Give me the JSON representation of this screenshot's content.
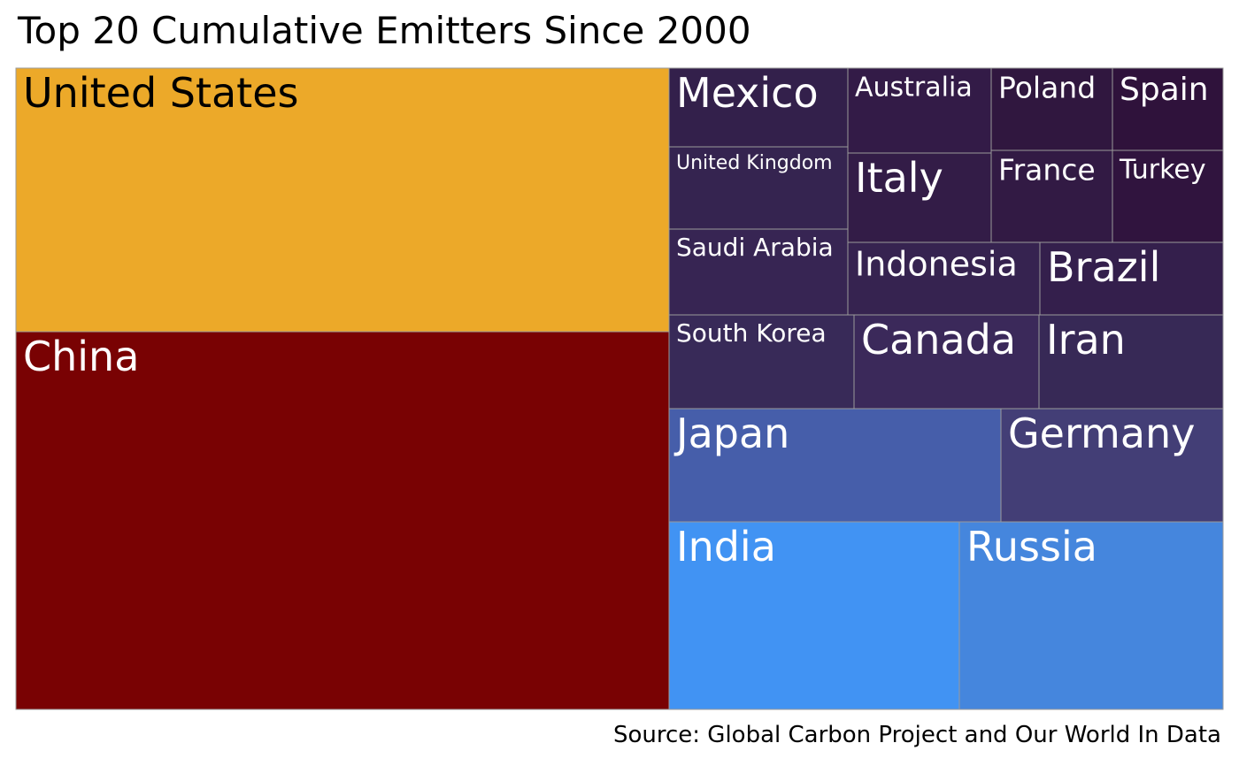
{
  "chart_data": {
    "type": "treemap",
    "title": "Top 20 Cumulative Emitters Since 2000",
    "caption": "Source: Global Carbon Project and Our World In Data",
    "items": [
      {
        "name": "United States",
        "color": "#ECA929",
        "text_color": "#000000"
      },
      {
        "name": "China",
        "color": "#790203",
        "text_color": "#ffffff"
      },
      {
        "name": "India",
        "color": "#4193F3",
        "text_color": "#ffffff"
      },
      {
        "name": "Russia",
        "color": "#4586DD",
        "text_color": "#ffffff"
      },
      {
        "name": "Japan",
        "color": "#465EAA",
        "text_color": "#ffffff"
      },
      {
        "name": "Germany",
        "color": "#433E76",
        "text_color": "#ffffff"
      },
      {
        "name": "South Korea",
        "color": "#382A58",
        "text_color": "#ffffff"
      },
      {
        "name": "Canada",
        "color": "#3B295A",
        "text_color": "#ffffff"
      },
      {
        "name": "Iran",
        "color": "#372956",
        "text_color": "#ffffff"
      },
      {
        "name": "Saudi Arabia",
        "color": "#372553",
        "text_color": "#ffffff"
      },
      {
        "name": "Indonesia",
        "color": "#362350",
        "text_color": "#ffffff"
      },
      {
        "name": "Brazil",
        "color": "#341F4C",
        "text_color": "#ffffff"
      },
      {
        "name": "United Kingdom",
        "color": "#352450",
        "text_color": "#ffffff"
      },
      {
        "name": "Mexico",
        "color": "#33204B",
        "text_color": "#ffffff"
      },
      {
        "name": "Italy",
        "color": "#331C47",
        "text_color": "#ffffff"
      },
      {
        "name": "Australia",
        "color": "#331B47",
        "text_color": "#ffffff"
      },
      {
        "name": "France",
        "color": "#321A44",
        "text_color": "#ffffff"
      },
      {
        "name": "Poland",
        "color": "#30173F",
        "text_color": "#ffffff"
      },
      {
        "name": "Turkey",
        "color": "#30143E",
        "text_color": "#ffffff"
      },
      {
        "name": "Spain",
        "color": "#2F123B",
        "text_color": "#ffffff"
      }
    ]
  }
}
